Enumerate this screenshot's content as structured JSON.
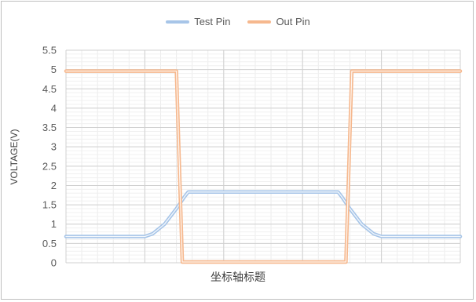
{
  "chart_data": {
    "type": "line",
    "title": "",
    "xlabel": "坐标轴标题",
    "ylabel": "VOLTAGE(V)",
    "ylim": [
      0,
      5.5
    ],
    "yticks": [
      "0",
      "0.5",
      "1",
      "1.5",
      "2",
      "2.5",
      "3",
      "3.5",
      "4",
      "4.5",
      "5",
      "5.5"
    ],
    "xlim": [
      0,
      100
    ],
    "grid": true,
    "legend_position": "top",
    "series": [
      {
        "name": "Test Pin",
        "color": "#a7c5e8",
        "x": [
          0,
          20,
          22,
          25,
          28,
          30,
          31,
          69,
          70,
          72,
          75,
          78,
          80,
          100
        ],
        "y": [
          0.68,
          0.68,
          0.75,
          1.0,
          1.4,
          1.7,
          1.83,
          1.83,
          1.7,
          1.4,
          1.0,
          0.75,
          0.68,
          0.68
        ]
      },
      {
        "name": "Out Pin",
        "color": "#f6b88e",
        "x": [
          0,
          28,
          29.5,
          71,
          72.5,
          100
        ],
        "y": [
          4.96,
          4.96,
          0.02,
          0.02,
          4.96,
          4.96
        ]
      }
    ]
  }
}
